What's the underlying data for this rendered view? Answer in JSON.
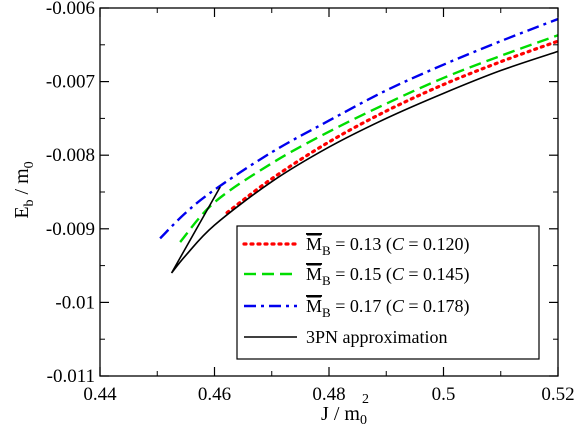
{
  "chart_data": {
    "type": "line",
    "xlabel": {
      "main": "J / m",
      "sub": "0",
      "sup": "2"
    },
    "ylabel": {
      "main": "E",
      "sub1": "b",
      "mid": " / m",
      "sub2": "0"
    },
    "xlim": [
      0.44,
      0.52
    ],
    "ylim": [
      -0.011,
      -0.006
    ],
    "x_ticks": [
      0.44,
      0.46,
      0.48,
      0.5,
      0.52
    ],
    "x_tick_labels": [
      "0.44",
      "0.46",
      "0.48",
      "0.5",
      "0.52"
    ],
    "y_ticks": [
      -0.011,
      -0.01,
      -0.009,
      -0.008,
      -0.007,
      -0.006
    ],
    "y_tick_labels": [
      "-0.011",
      "-0.01",
      "-0.009",
      "-0.008",
      "-0.007",
      "-0.006"
    ],
    "grid": false,
    "legend_position": "bottom-right",
    "series": [
      {
        "label_mass": "0.13",
        "label_compactness": "0.120",
        "color": "#ff0000",
        "dash": "dotted",
        "x": [
          0.4622,
          0.47,
          0.48,
          0.49,
          0.5,
          0.51,
          0.52
        ],
        "y": [
          -0.00878,
          -0.00832,
          -0.00782,
          -0.0074,
          -0.00704,
          -0.00673,
          -0.00645
        ]
      },
      {
        "label_mass": "0.15",
        "label_compactness": "0.145",
        "color": "#00dd00",
        "dash": "dashed",
        "x": [
          0.454,
          0.46,
          0.47,
          0.48,
          0.49,
          0.5,
          0.51,
          0.52
        ],
        "y": [
          -0.00918,
          -0.00864,
          -0.00811,
          -0.00768,
          -0.0073,
          -0.00695,
          -0.00665,
          -0.00637
        ]
      },
      {
        "label_mass": "0.17",
        "label_compactness": "0.178",
        "color": "#0000ee",
        "dash": "dashdot",
        "x": [
          0.4505,
          0.455,
          0.46,
          0.47,
          0.48,
          0.49,
          0.5,
          0.51,
          0.52
        ],
        "y": [
          -0.00913,
          -0.00878,
          -0.00847,
          -0.00796,
          -0.00753,
          -0.00712,
          -0.00677,
          -0.00645,
          -0.00615
        ]
      },
      {
        "label": "3PN approximation",
        "color": "#000000",
        "dash": "solid",
        "x": [
          0.461,
          0.4525,
          0.455,
          0.46,
          0.47,
          0.48,
          0.49,
          0.5,
          0.51,
          0.52
        ],
        "y": [
          -0.00843,
          -0.0096,
          -0.00936,
          -0.00895,
          -0.00836,
          -0.00789,
          -0.0075,
          -0.00716,
          -0.00685,
          -0.00659
        ]
      }
    ],
    "legend": {
      "m_symbol": "M",
      "m_sub": "B",
      "c_symbol": "C"
    }
  }
}
